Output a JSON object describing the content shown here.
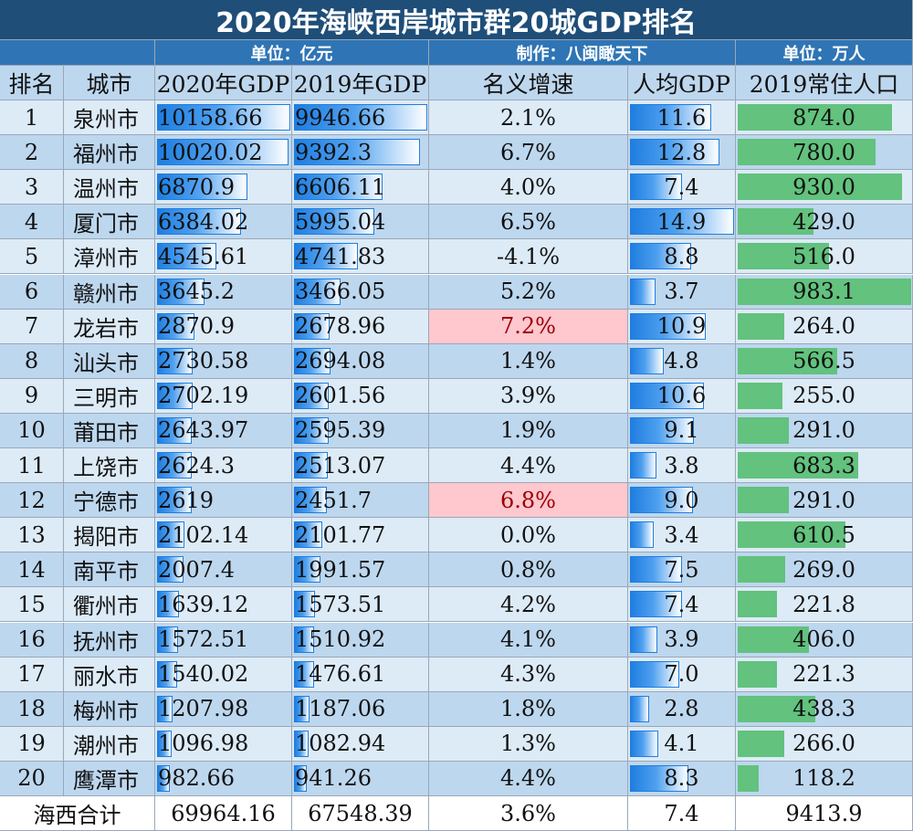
{
  "title": "2020年海峡西岸城市群20城GDP排名",
  "subtitles": {
    "left": "单位：亿元",
    "center": "制作：八闽瞰天下",
    "right": "单位：万人"
  },
  "headers": [
    "排名",
    "城市",
    "2020年GDP",
    "2019年GDP",
    "名义增速",
    "人均GDP",
    "2019常住人口"
  ],
  "colors": {
    "title_bg": "#1f4e79",
    "subtitle_bg": "#2f75b5",
    "row_light": "#ddebf7",
    "row_dark": "#bdd7ee",
    "bar_blue": "#1f7ee0",
    "bar_green": "#62c27e",
    "highlight_bg": "#ffc7ce",
    "highlight_text": "#9c0006"
  },
  "chart_data": {
    "type": "table",
    "title": "2020年海峡西岸城市群20城GDP排名",
    "columns": [
      "排名",
      "城市",
      "2020年GDP",
      "2019年GDP",
      "名义增速",
      "人均GDP",
      "2019常住人口"
    ],
    "rows": [
      {
        "rank": "1",
        "city": "泉州市",
        "gdp2020": "10158.66",
        "gdp2019": "9946.66",
        "growth": "2.1%",
        "per_capita": "11.6",
        "population": "874.0",
        "highlight": false
      },
      {
        "rank": "2",
        "city": "福州市",
        "gdp2020": "10020.02",
        "gdp2019": "9392.3",
        "growth": "6.7%",
        "per_capita": "12.8",
        "population": "780.0",
        "highlight": false
      },
      {
        "rank": "3",
        "city": "温州市",
        "gdp2020": "6870.9",
        "gdp2019": "6606.11",
        "growth": "4.0%",
        "per_capita": "7.4",
        "population": "930.0",
        "highlight": false
      },
      {
        "rank": "4",
        "city": "厦门市",
        "gdp2020": "6384.02",
        "gdp2019": "5995.04",
        "growth": "6.5%",
        "per_capita": "14.9",
        "population": "429.0",
        "highlight": false
      },
      {
        "rank": "5",
        "city": "漳州市",
        "gdp2020": "4545.61",
        "gdp2019": "4741.83",
        "growth": "-4.1%",
        "per_capita": "8.8",
        "population": "516.0",
        "highlight": false
      },
      {
        "rank": "6",
        "city": "赣州市",
        "gdp2020": "3645.2",
        "gdp2019": "3466.05",
        "growth": "5.2%",
        "per_capita": "3.7",
        "population": "983.1",
        "highlight": false
      },
      {
        "rank": "7",
        "city": "龙岩市",
        "gdp2020": "2870.9",
        "gdp2019": "2678.96",
        "growth": "7.2%",
        "per_capita": "10.9",
        "population": "264.0",
        "highlight": true
      },
      {
        "rank": "8",
        "city": "汕头市",
        "gdp2020": "2730.58",
        "gdp2019": "2694.08",
        "growth": "1.4%",
        "per_capita": "4.8",
        "population": "566.5",
        "highlight": false
      },
      {
        "rank": "9",
        "city": "三明市",
        "gdp2020": "2702.19",
        "gdp2019": "2601.56",
        "growth": "3.9%",
        "per_capita": "10.6",
        "population": "255.0",
        "highlight": false
      },
      {
        "rank": "10",
        "city": "莆田市",
        "gdp2020": "2643.97",
        "gdp2019": "2595.39",
        "growth": "1.9%",
        "per_capita": "9.1",
        "population": "291.0",
        "highlight": false
      },
      {
        "rank": "11",
        "city": "上饶市",
        "gdp2020": "2624.3",
        "gdp2019": "2513.07",
        "growth": "4.4%",
        "per_capita": "3.8",
        "population": "683.3",
        "highlight": false
      },
      {
        "rank": "12",
        "city": "宁德市",
        "gdp2020": "2619",
        "gdp2019": "2451.7",
        "growth": "6.8%",
        "per_capita": "9.0",
        "population": "291.0",
        "highlight": true
      },
      {
        "rank": "13",
        "city": "揭阳市",
        "gdp2020": "2102.14",
        "gdp2019": "2101.77",
        "growth": "0.0%",
        "per_capita": "3.4",
        "population": "610.5",
        "highlight": false
      },
      {
        "rank": "14",
        "city": "南平市",
        "gdp2020": "2007.4",
        "gdp2019": "1991.57",
        "growth": "0.8%",
        "per_capita": "7.5",
        "population": "269.0",
        "highlight": false
      },
      {
        "rank": "15",
        "city": "衢州市",
        "gdp2020": "1639.12",
        "gdp2019": "1573.51",
        "growth": "4.2%",
        "per_capita": "7.4",
        "population": "221.8",
        "highlight": false
      },
      {
        "rank": "16",
        "city": "抚州市",
        "gdp2020": "1572.51",
        "gdp2019": "1510.92",
        "growth": "4.1%",
        "per_capita": "3.9",
        "population": "406.0",
        "highlight": false
      },
      {
        "rank": "17",
        "city": "丽水市",
        "gdp2020": "1540.02",
        "gdp2019": "1476.61",
        "growth": "4.3%",
        "per_capita": "7.0",
        "population": "221.3",
        "highlight": false
      },
      {
        "rank": "18",
        "city": "梅州市",
        "gdp2020": "1207.98",
        "gdp2019": "1187.06",
        "growth": "1.8%",
        "per_capita": "2.8",
        "population": "438.3",
        "highlight": false
      },
      {
        "rank": "19",
        "city": "潮州市",
        "gdp2020": "1096.98",
        "gdp2019": "1082.94",
        "growth": "1.3%",
        "per_capita": "4.1",
        "population": "266.0",
        "highlight": false
      },
      {
        "rank": "20",
        "city": "鹰潭市",
        "gdp2020": "982.66",
        "gdp2019": "941.26",
        "growth": "4.4%",
        "per_capita": "8.3",
        "population": "118.2",
        "highlight": false
      }
    ],
    "total": {
      "label": "海西合计",
      "gdp2020": "69964.16",
      "gdp2019": "67548.39",
      "growth": "3.6%",
      "per_capita": "7.4",
      "population": "9413.9"
    },
    "data_bars": [
      "2020年GDP",
      "2019年GDP",
      "人均GDP",
      "2019常住人口"
    ]
  }
}
